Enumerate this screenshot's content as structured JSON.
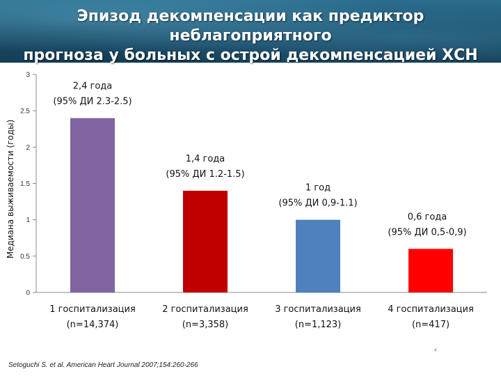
{
  "header": {
    "title_line1": "Эпизод декомпенсации как предиктор неблагоприятного",
    "title_line2": "прогноза у больных с острой декомпенсацией ХСН"
  },
  "chart_data": {
    "type": "bar",
    "title": "",
    "xlabel": "",
    "ylabel": "Медиана выживаемости (годы)",
    "ylim": [
      0,
      3
    ],
    "yticks": [
      "0",
      "0.5",
      "1",
      "1.5",
      "2",
      "2.5",
      "3"
    ],
    "grid": false,
    "categories": [
      {
        "line1": "1 госпитализация",
        "line2": "(n=14,374)"
      },
      {
        "line1": "2 госпитализация",
        "line2": "(n=3,358)"
      },
      {
        "line1": "3 госпитализация",
        "line2": "(n=1,123)"
      },
      {
        "line1": "4 госпитализация",
        "line2": "(n=417)"
      }
    ],
    "values": [
      2.4,
      1.4,
      1.0,
      0.6
    ],
    "colors": [
      "#8064a2",
      "#c00000",
      "#4f81bd",
      "#ff0000"
    ],
    "data_labels": [
      {
        "line1": "2,4 года",
        "line2": "(95% ДИ 2.3-2.5)"
      },
      {
        "line1": "1,4 года",
        "line2": "(95% ДИ 1.2-1.5)"
      },
      {
        "line1": "1 год",
        "line2": "(95% ДИ 0,9-1.1)"
      },
      {
        "line1": "0,6 года",
        "line2": "(95% ДИ 0,5-0,9)"
      }
    ]
  },
  "footer": {
    "source": "Setoguchi S. et al. American Heart Journal 2007;154:260-266",
    "slide_mark": "4"
  }
}
